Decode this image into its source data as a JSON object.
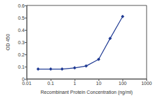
{
  "chart_data": {
    "type": "line",
    "x": [
      0.03,
      0.1,
      0.3,
      1,
      3,
      10,
      30,
      100
    ],
    "values": [
      0.08,
      0.08,
      0.08,
      0.09,
      0.105,
      0.16,
      0.33,
      0.51
    ],
    "color": "#1f3a93",
    "marker": "diamond",
    "xlabel": "Recombinant Protein Concentration (ng/ml)",
    "ylabel": "OD 450",
    "log": "x",
    "xlim": [
      0.01,
      1000
    ],
    "xticks": [
      0.01,
      0.1,
      1,
      10,
      100,
      1000
    ],
    "ylim": [
      0,
      0.6
    ],
    "yticks": [
      0,
      0.1,
      0.2,
      0.3,
      0.4,
      0.5,
      0.6
    ],
    "grid": false
  }
}
